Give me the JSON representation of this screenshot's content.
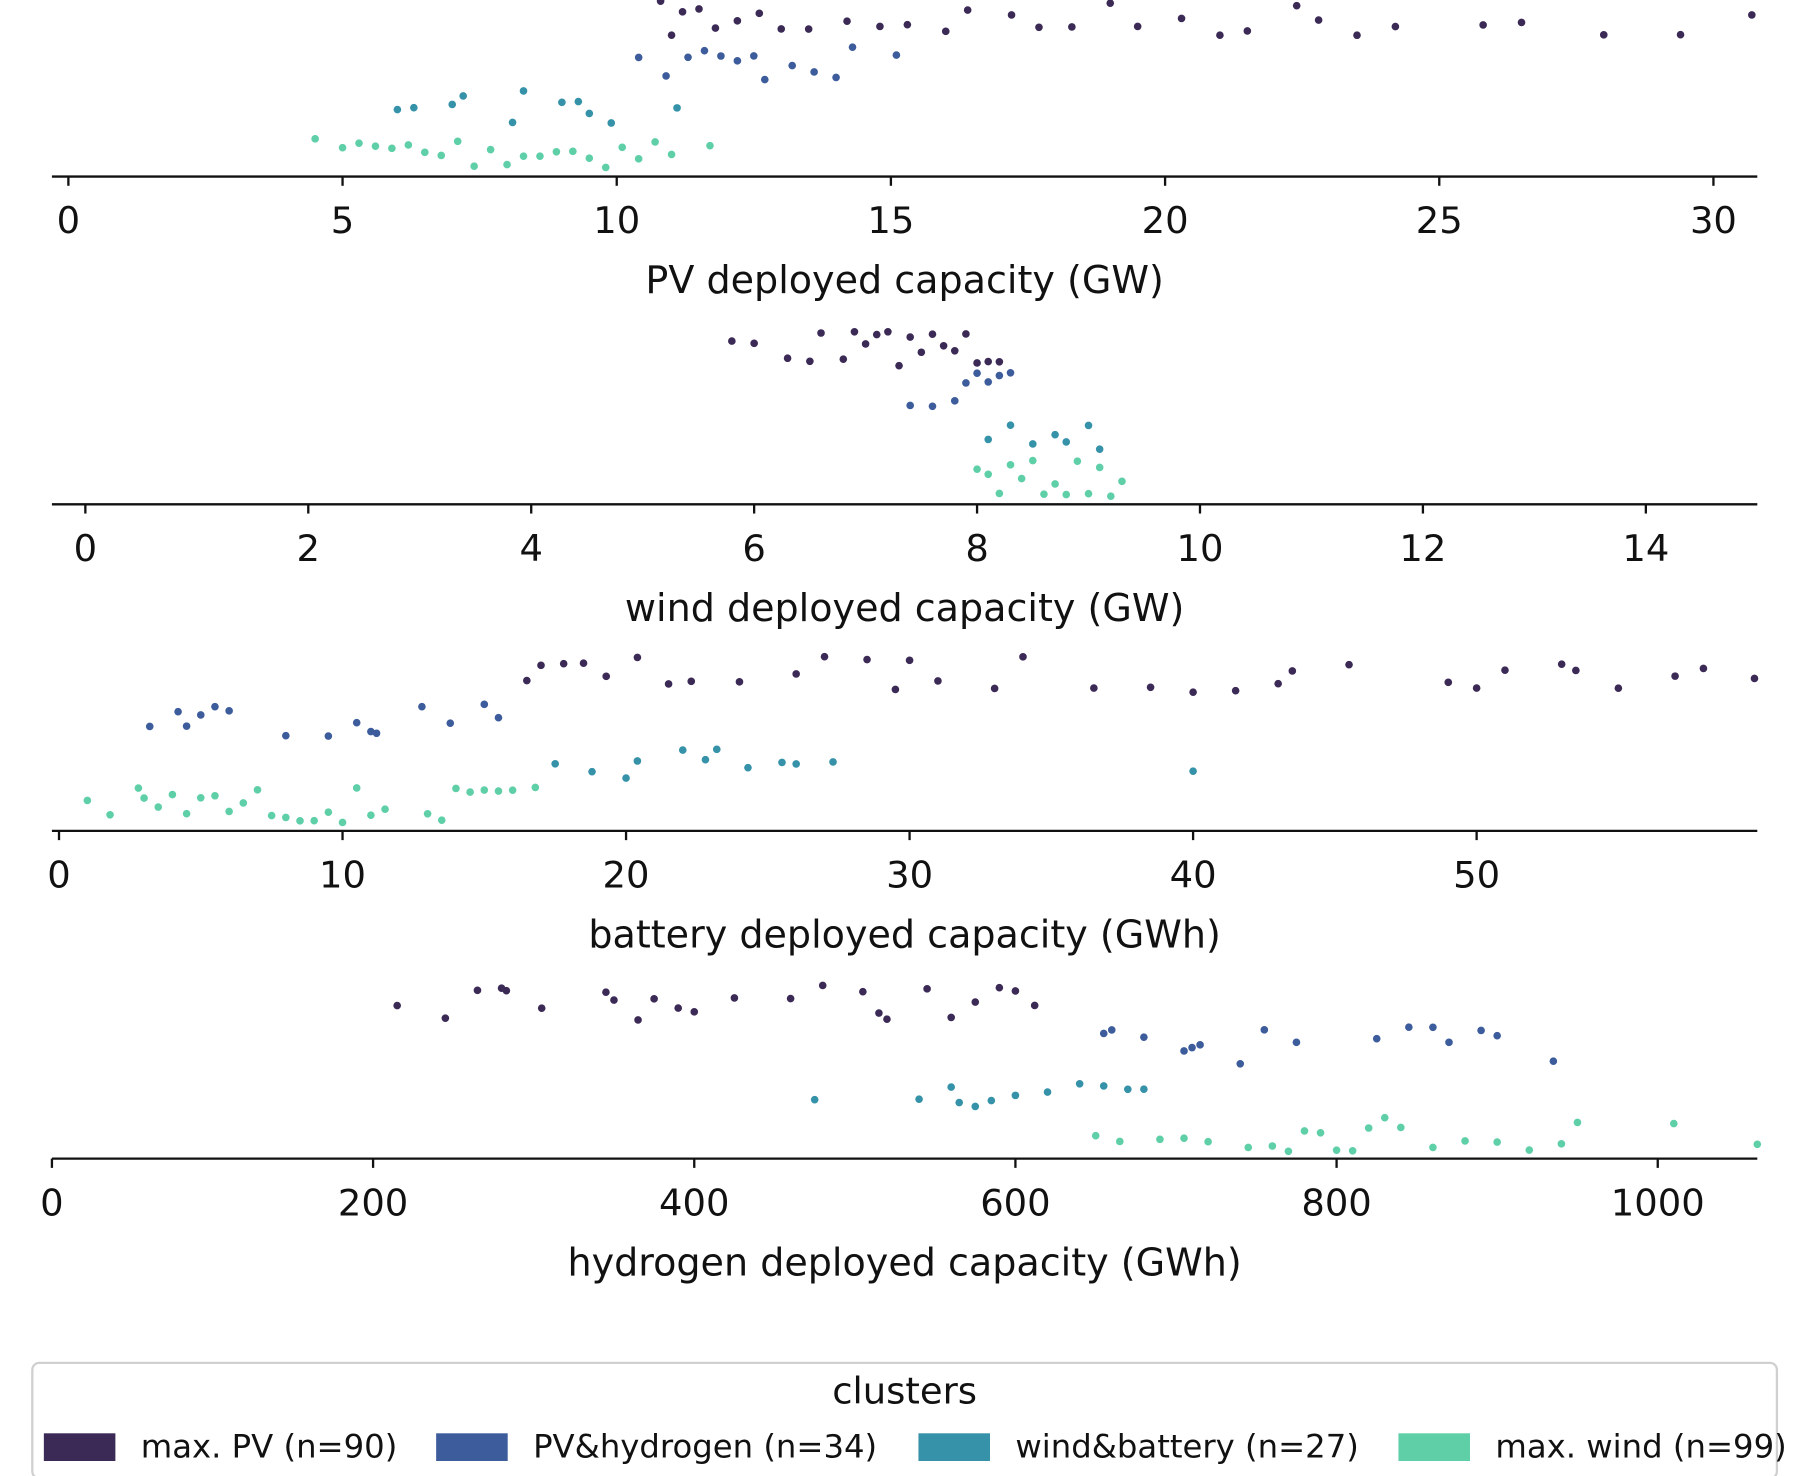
{
  "chart_data": {
    "type": "strip",
    "legend": {
      "title": "clusters",
      "corner": "lower center"
    },
    "clusters": [
      {
        "name": "max. PV (n=90)",
        "color": "#3b2a55"
      },
      {
        "name": "PV&hydrogen (n=34)",
        "color": "#3d5c9c"
      },
      {
        "name": "wind&battery (n=27)",
        "color": "#3592a8"
      },
      {
        "name": "max. wind (n=99)",
        "color": "#5fcfa8"
      }
    ],
    "panels": [
      {
        "xlabel": "PV deployed capacity (GW)",
        "xlim": [
          -0.3,
          30.8
        ],
        "xticks": [
          0,
          5,
          10,
          15,
          20,
          25,
          30
        ],
        "values": [
          [
            10.8,
            11,
            11.2,
            11.5,
            11.8,
            12.2,
            12.6,
            13,
            13.5,
            14.2,
            14.8,
            15.3,
            16,
            16.4,
            17.2,
            17.7,
            18.3,
            19,
            19.5,
            20.3,
            21,
            21.5,
            22.4,
            22.8,
            23.5,
            24.2,
            25.8,
            26.5,
            28,
            29.4,
            30.7
          ],
          [
            10.4,
            10.9,
            11.3,
            11.6,
            11.9,
            12.2,
            12.5,
            12.7,
            13.2,
            13.6,
            14,
            14.3,
            15.1
          ],
          [
            6,
            6.3,
            7,
            7.2,
            8.1,
            8.3,
            9,
            9.3,
            9.5,
            9.9,
            11.1
          ],
          [
            4.5,
            5,
            5.3,
            5.6,
            5.9,
            6.2,
            6.5,
            6.8,
            7.1,
            7.4,
            7.7,
            8,
            8.3,
            8.6,
            8.9,
            9.2,
            9.5,
            9.8,
            10.1,
            10.4,
            10.7,
            11,
            11.7
          ]
        ]
      },
      {
        "xlabel": "wind deployed capacity (GW)",
        "xlim": [
          -0.3,
          15.0
        ],
        "xticks": [
          0,
          2,
          4,
          6,
          8,
          10,
          12,
          14
        ],
        "values": [
          [
            5.8,
            6,
            6.3,
            6.5,
            6.6,
            6.8,
            6.9,
            7.0,
            7.1,
            7.2,
            7.3,
            7.4,
            7.5,
            7.6,
            7.7,
            7.8,
            7.9,
            8.0,
            8.1,
            8.2
          ],
          [
            7.4,
            7.6,
            7.8,
            7.9,
            8.0,
            8.1,
            8.2,
            8.3
          ],
          [
            8.1,
            8.3,
            8.5,
            8.7,
            8.8,
            9.0,
            9.1
          ],
          [
            8.0,
            8.1,
            8.2,
            8.3,
            8.4,
            8.5,
            8.6,
            8.7,
            8.8,
            8.9,
            9.0,
            9.1,
            9.2,
            9.3
          ]
        ]
      },
      {
        "xlabel": "battery deployed capacity (GWh)",
        "xlim": [
          -0.25,
          59.9
        ],
        "xticks": [
          0,
          10,
          20,
          30,
          40,
          50
        ],
        "values": [
          [
            16.5,
            17,
            17.8,
            18.5,
            19.3,
            20.4,
            21.5,
            22.3,
            24,
            26,
            27,
            28.5,
            29.5,
            30,
            31,
            33,
            34,
            36.5,
            38.5,
            40,
            41.5,
            43,
            43.5,
            45.5,
            49,
            50,
            51,
            53,
            53.5,
            55,
            57,
            58,
            59.8
          ],
          [
            3.2,
            4.2,
            4.5,
            5,
            5.5,
            6,
            8,
            9.5,
            10.5,
            11,
            11.2,
            12.8,
            13.8,
            15,
            15.5
          ],
          [
            17.5,
            18.8,
            20,
            20.4,
            22,
            22.8,
            23.2,
            24.3,
            25.5,
            26,
            27.3,
            40
          ],
          [
            1,
            1.8,
            2.8,
            3,
            3.5,
            4,
            4.5,
            5,
            5.5,
            6,
            6.5,
            7,
            7.5,
            8,
            8.5,
            9,
            9.5,
            10,
            10.5,
            11,
            11.5,
            13,
            13.5,
            14,
            14.5,
            15,
            15.5,
            16,
            16.8
          ]
        ]
      },
      {
        "xlabel": "hydrogen deployed capacity (GWh)",
        "xlim": [
          0,
          1062
        ],
        "xticks": [
          0,
          200,
          400,
          600,
          800,
          1000
        ],
        "values": [
          [
            215,
            245,
            265,
            280,
            283,
            305,
            345,
            350,
            365,
            375,
            390,
            400,
            425,
            460,
            480,
            505,
            515,
            520,
            545,
            560,
            575,
            590,
            600,
            612
          ],
          [
            655,
            660,
            680,
            705,
            710,
            715,
            740,
            755,
            775,
            825,
            845,
            860,
            870,
            890,
            900,
            935
          ],
          [
            475,
            540,
            560,
            565,
            575,
            585,
            600,
            620,
            640,
            655,
            670,
            680
          ],
          [
            650,
            665,
            690,
            705,
            720,
            745,
            760,
            770,
            780,
            790,
            800,
            810,
            820,
            830,
            840,
            860,
            880,
            900,
            920,
            940,
            950,
            1010,
            1062
          ]
        ]
      }
    ]
  }
}
